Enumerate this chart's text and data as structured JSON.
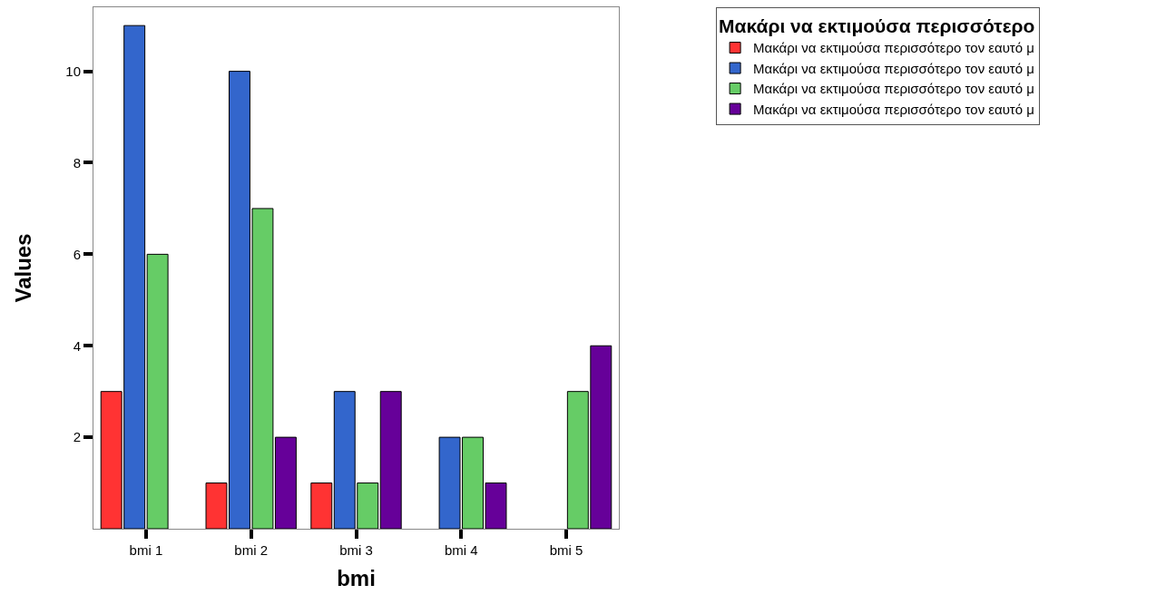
{
  "chart_data": {
    "type": "bar",
    "xlabel": "bmi",
    "ylabel": "Values",
    "legend_title": "Μακάρι να εκτιμούσα περισσότερο",
    "categories": [
      "bmi 1",
      "bmi 2",
      "bmi 3",
      "bmi 4",
      "bmi 5"
    ],
    "series": [
      {
        "name": "Μακάρι να εκτιμούσα περισσότερο τον εαυτό μ",
        "color": "#ff3333",
        "values": [
          3,
          1,
          1,
          null,
          null
        ]
      },
      {
        "name": "Μακάρι να εκτιμούσα περισσότερο τον εαυτό μ",
        "color": "#3366cc",
        "values": [
          11,
          10,
          3,
          2,
          null
        ]
      },
      {
        "name": "Μακάρι να εκτιμούσα περισσότερο τον εαυτό μ",
        "color": "#66cc66",
        "values": [
          6,
          7,
          1,
          2,
          3
        ]
      },
      {
        "name": "Μακάρι να εκτιμούσα περισσότερο τον εαυτό μ",
        "color": "#660099",
        "values": [
          null,
          2,
          3,
          1,
          4
        ]
      }
    ],
    "ylim": [
      0,
      11.4
    ],
    "yticks": [
      2,
      4,
      6,
      8,
      10
    ],
    "legend": "right"
  }
}
